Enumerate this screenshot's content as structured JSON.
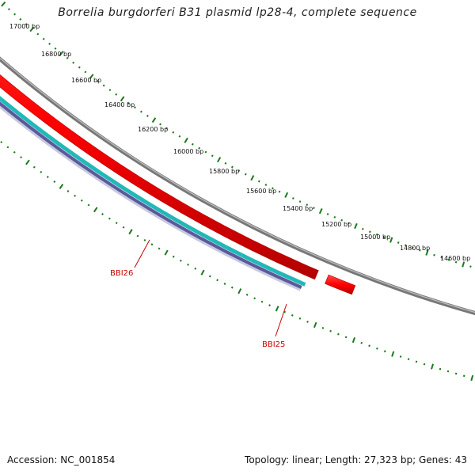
{
  "title": "Borrelia burgdorferi B31 plasmid lp28-4, complete sequence",
  "footer": {
    "accession": "Accession: NC_001854",
    "summary": "Topology: linear; Length: 27,323 bp; Genes: 43"
  },
  "scale_labels": [
    "17000 bp",
    "16800 bp",
    "16600 bp",
    "16400 bp",
    "16200 bp",
    "16000 bp",
    "15800 bp",
    "15600 bp",
    "15400 bp",
    "15200 bp",
    "15000 bp",
    "14800 bp",
    "14600 bp"
  ],
  "genes": [
    {
      "name": "BBI26",
      "color": "#ff0000"
    },
    {
      "name": "BBI25",
      "color": "#ff0000"
    }
  ],
  "colors": {
    "backbone": "#777777",
    "ticks": "#1a7a1a",
    "forward_feature": "#ff1a1a",
    "reverse_band_cyan": "#22b8b8",
    "reverse_band_purple": "#5a5a9a",
    "label": "#cc0000"
  }
}
